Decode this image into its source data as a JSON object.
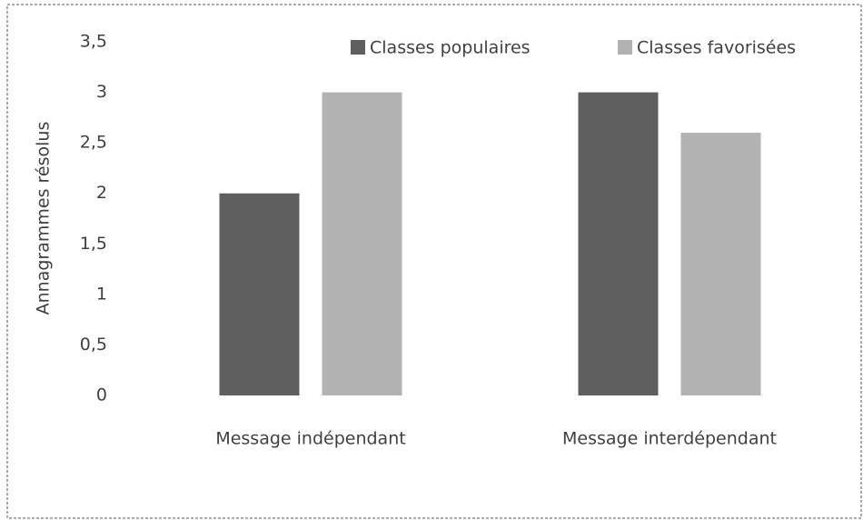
{
  "chart_data": {
    "type": "bar",
    "categories": [
      "Message indépendant",
      "Message interdépendant"
    ],
    "series": [
      {
        "name": "Classes populaires",
        "color": "#5f5f5f",
        "values": [
          2,
          3
        ]
      },
      {
        "name": "Classes favorisées",
        "color": "#b2b2b2",
        "values": [
          3,
          2.6
        ]
      }
    ],
    "y_label": "Annagrammes résolus",
    "ylim": [
      0,
      3.5
    ],
    "yticks": [
      0,
      {
        "value": 0.5,
        "label": "0,5"
      },
      1,
      {
        "value": 1.5,
        "label": "1,5"
      },
      2,
      {
        "value": 2.5,
        "label": "2,5"
      },
      3,
      {
        "value": 3.5,
        "label": "3,5"
      }
    ],
    "grid": false,
    "legend": "top"
  }
}
